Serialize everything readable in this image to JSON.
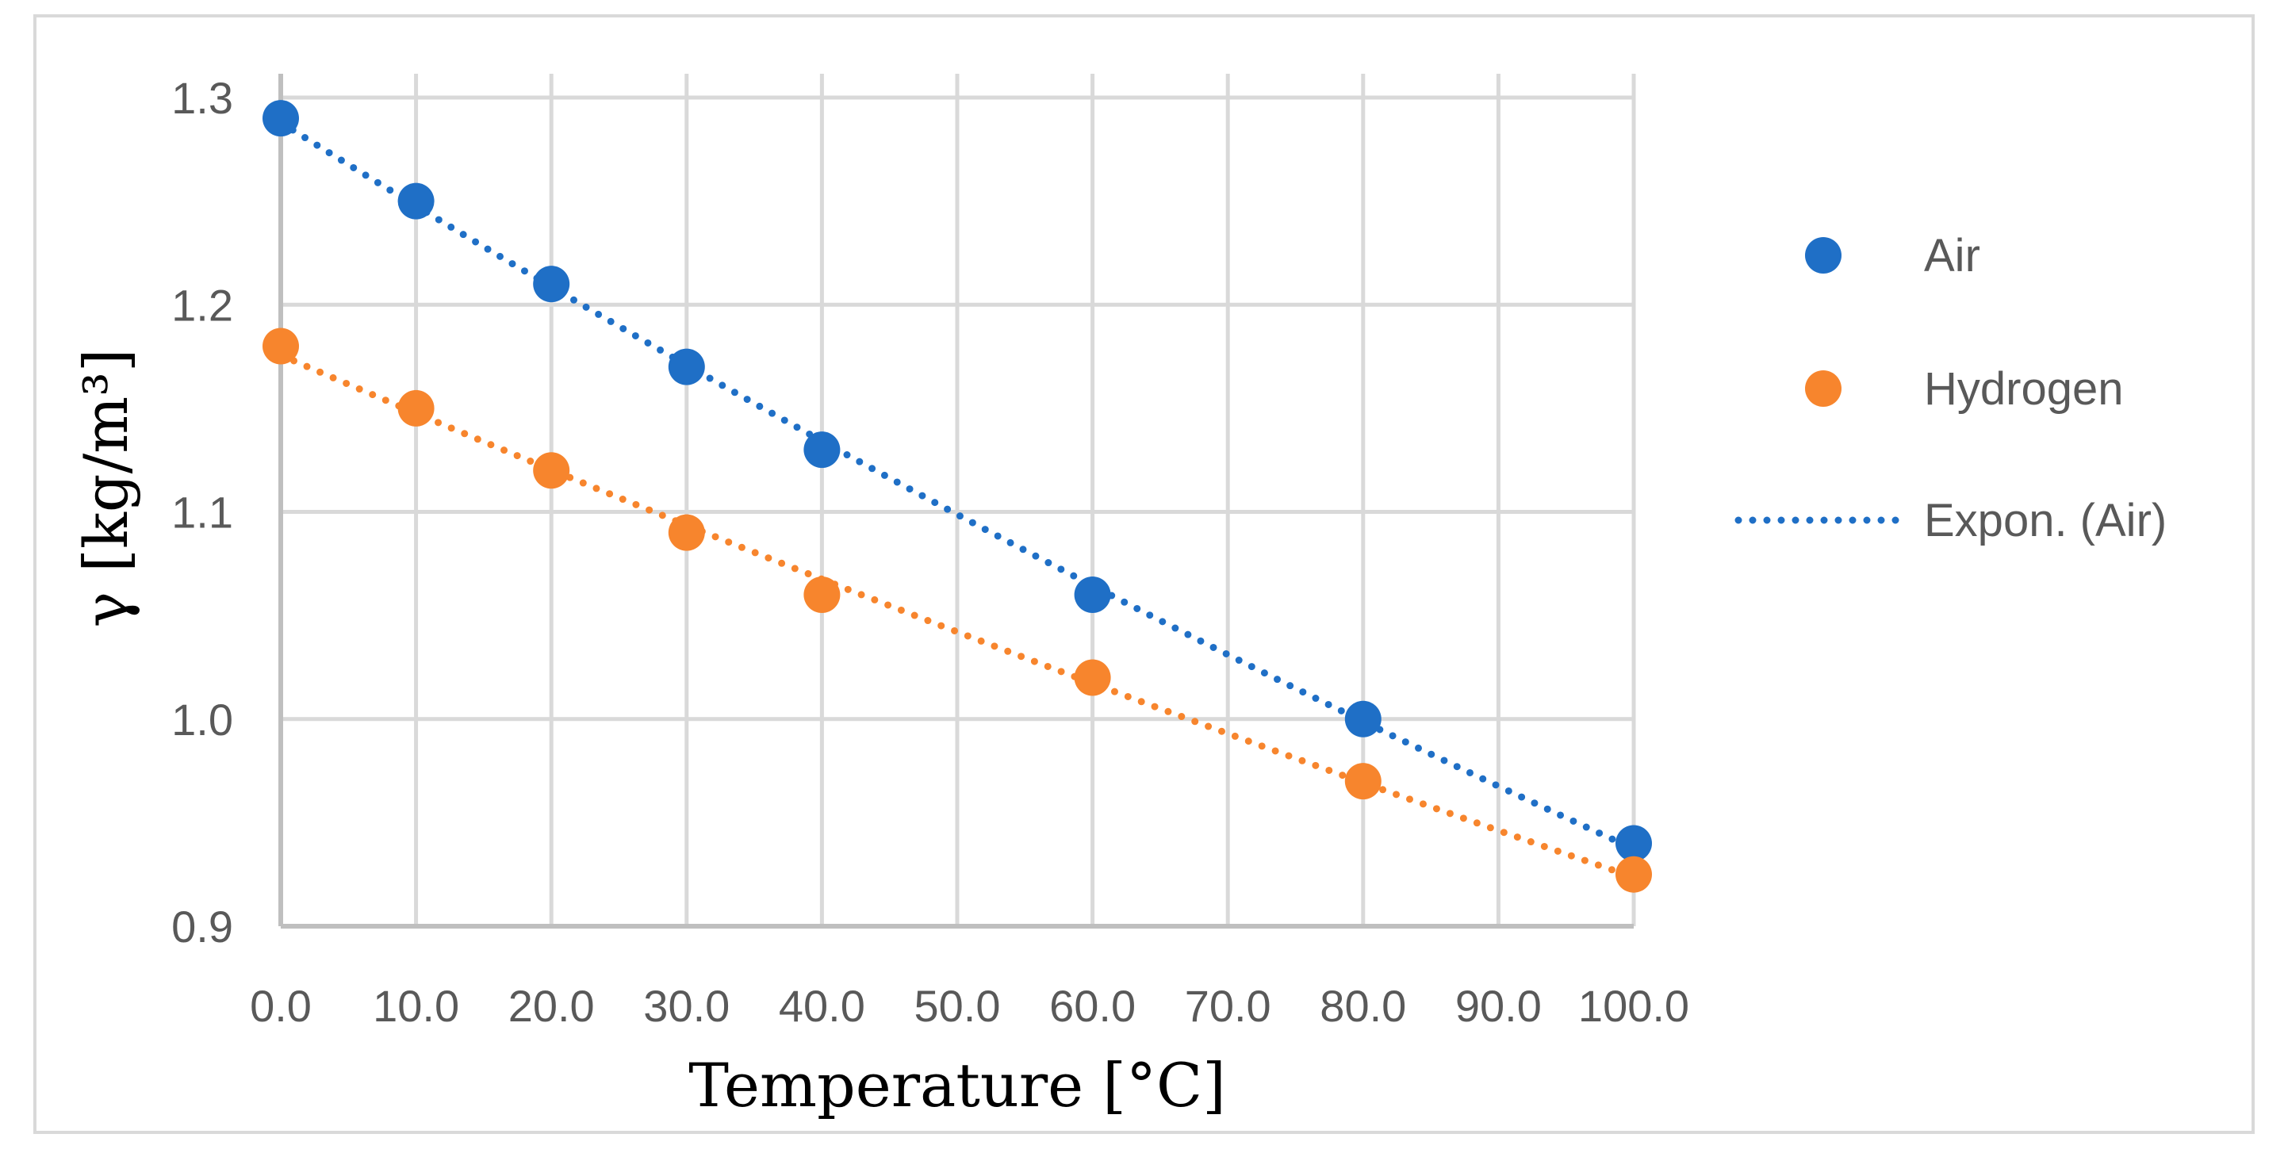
{
  "chart_data": {
    "type": "scatter",
    "title": "",
    "xlabel": "Temperature [°C]",
    "ylabel": "γ [kg/m³]",
    "xlim": [
      0,
      100
    ],
    "ylim": [
      0.9,
      1.3
    ],
    "grid": true,
    "x_ticks": [
      0,
      10,
      20,
      30,
      40,
      50,
      60,
      70,
      80,
      90,
      100
    ],
    "x_tick_labels": [
      "0.0",
      "10.0",
      "20.0",
      "30.0",
      "40.0",
      "50.0",
      "60.0",
      "70.0",
      "80.0",
      "90.0",
      "100.0"
    ],
    "y_ticks": [
      0.9,
      1.0,
      1.1,
      1.2,
      1.3
    ],
    "y_tick_labels": [
      "0.9",
      "1.0",
      "1.1",
      "1.2",
      "1.3"
    ],
    "series": [
      {
        "name": "Air",
        "color": "#1f6fc6",
        "x": [
          0,
          10,
          20,
          30,
          40,
          60,
          80,
          100
        ],
        "values": [
          1.29,
          1.25,
          1.21,
          1.17,
          1.13,
          1.06,
          1.0,
          0.94
        ]
      },
      {
        "name": "Hydrogen",
        "color": "#f7852d",
        "x": [
          0,
          10,
          20,
          30,
          40,
          60,
          80,
          100
        ],
        "values": [
          1.18,
          1.15,
          1.12,
          1.09,
          1.06,
          1.02,
          0.97,
          0.925
        ]
      }
    ],
    "trendlines": [
      {
        "name": "Expon. (Air)",
        "of": "Air",
        "kind": "exponential",
        "color": "#1f6fc6",
        "show_in_legend": true
      },
      {
        "name": "Expon. (Hydrogen)",
        "of": "Hydrogen",
        "kind": "exponential",
        "color": "#f7852d",
        "show_in_legend": false
      }
    ],
    "legend": {
      "placement": "right",
      "entries": [
        {
          "label": "Air",
          "kind": "marker",
          "color": "#1f6fc6"
        },
        {
          "label": "Hydrogen",
          "kind": "marker",
          "color": "#f7852d"
        },
        {
          "label": "Expon. (Air)",
          "kind": "dotted-line",
          "color": "#1f6fc6"
        }
      ]
    }
  }
}
